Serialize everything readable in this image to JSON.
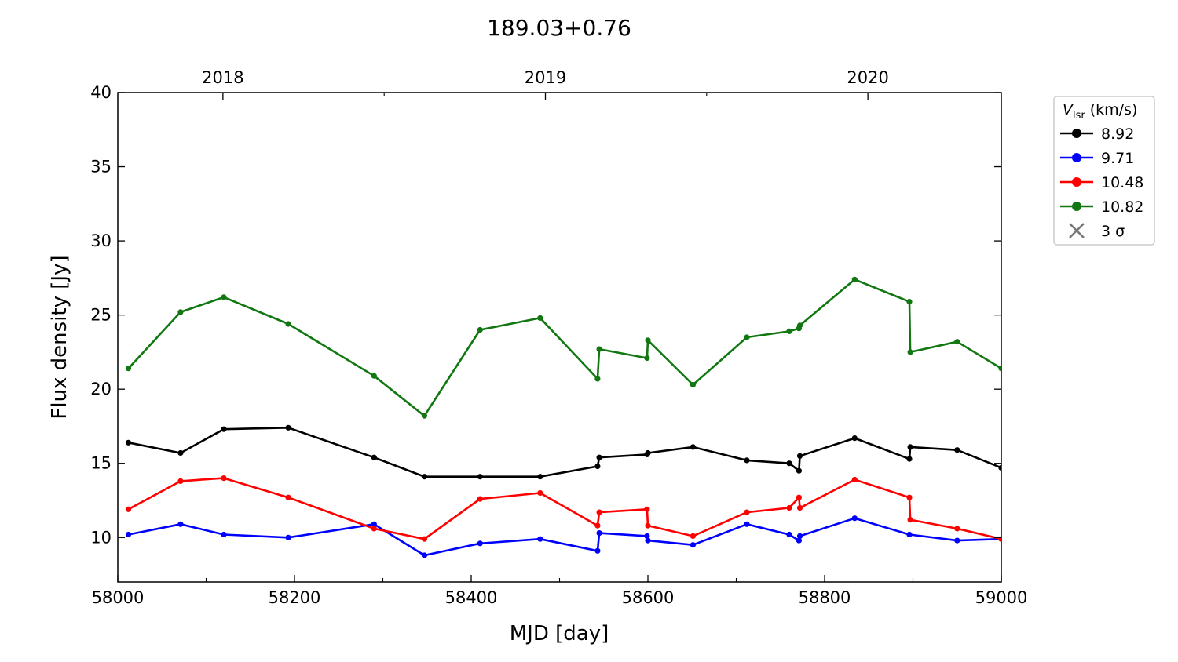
{
  "chart_data": {
    "type": "line",
    "title": "189.03+0.76",
    "xlabel": "MJD [day]",
    "ylabel": "Flux density [Jy]",
    "xlim": [
      58000,
      59000
    ],
    "ylim": [
      7,
      40
    ],
    "x_ticks": [
      58000,
      58200,
      58400,
      58600,
      58800,
      59000
    ],
    "y_ticks": [
      10,
      15,
      20,
      25,
      30,
      35,
      40
    ],
    "top_axis": {
      "ticks": [
        {
          "label": "2018",
          "x": 58119
        },
        {
          "label": "2019",
          "x": 58484
        },
        {
          "label": "2020",
          "x": 58849
        }
      ]
    },
    "legend": {
      "placement": "upper-right-outside",
      "title_symbol": "V",
      "title_subscript": "lsr",
      "title_unit": "(km/s)",
      "limit_marker_label": "3 σ"
    },
    "colors": {
      "8.92": "#000000",
      "9.71": "#0000ff",
      "10.48": "#ff0000",
      "10.82": "#117711",
      "limit_marker": "#777777"
    },
    "grid": false,
    "series": [
      {
        "name": "8.92",
        "color": "#000000",
        "x": [
          58012,
          58071,
          58120,
          58193,
          58290,
          58347,
          58410,
          58478,
          58543,
          58545,
          58599,
          58600,
          58651,
          58712,
          58760,
          58771,
          58772,
          58834,
          58896,
          58897,
          58950,
          59000
        ],
        "y": [
          16.4,
          15.7,
          17.3,
          17.4,
          15.4,
          14.1,
          14.1,
          14.1,
          14.8,
          15.4,
          15.6,
          15.7,
          16.1,
          15.2,
          15.0,
          14.5,
          15.5,
          16.7,
          15.3,
          16.1,
          15.9,
          14.7
        ]
      },
      {
        "name": "9.71",
        "color": "#0000ff",
        "x": [
          58012,
          58071,
          58120,
          58193,
          58290,
          58347,
          58410,
          58478,
          58543,
          58545,
          58599,
          58600,
          58651,
          58712,
          58760,
          58771,
          58772,
          58834,
          58896,
          58950,
          59000
        ],
        "y": [
          10.2,
          10.9,
          10.2,
          10.0,
          10.9,
          8.8,
          9.6,
          9.9,
          9.1,
          10.3,
          10.1,
          9.8,
          9.5,
          10.9,
          10.2,
          9.8,
          10.1,
          11.3,
          10.2,
          9.8,
          9.9
        ]
      },
      {
        "name": "10.48",
        "color": "#ff0000",
        "x": [
          58012,
          58071,
          58120,
          58193,
          58290,
          58347,
          58410,
          58478,
          58543,
          58545,
          58599,
          58600,
          58651,
          58712,
          58760,
          58771,
          58772,
          58834,
          58896,
          58897,
          58950,
          59000
        ],
        "y": [
          11.9,
          13.8,
          14.0,
          12.7,
          10.6,
          9.9,
          12.6,
          13.0,
          10.8,
          11.7,
          11.9,
          10.8,
          10.1,
          11.7,
          12.0,
          12.7,
          12.0,
          13.9,
          12.7,
          11.2,
          10.6,
          9.9
        ]
      },
      {
        "name": "10.82",
        "color": "#117711",
        "x": [
          58012,
          58071,
          58120,
          58193,
          58290,
          58347,
          58410,
          58478,
          58543,
          58545,
          58599,
          58600,
          58651,
          58712,
          58760,
          58771,
          58772,
          58834,
          58896,
          58897,
          58950,
          59000
        ],
        "y": [
          21.4,
          25.2,
          26.2,
          24.4,
          20.9,
          18.2,
          24.0,
          24.8,
          20.7,
          22.7,
          22.1,
          23.3,
          20.3,
          23.5,
          23.9,
          24.1,
          24.3,
          27.4,
          25.9,
          22.5,
          23.2,
          21.4
        ]
      }
    ]
  }
}
